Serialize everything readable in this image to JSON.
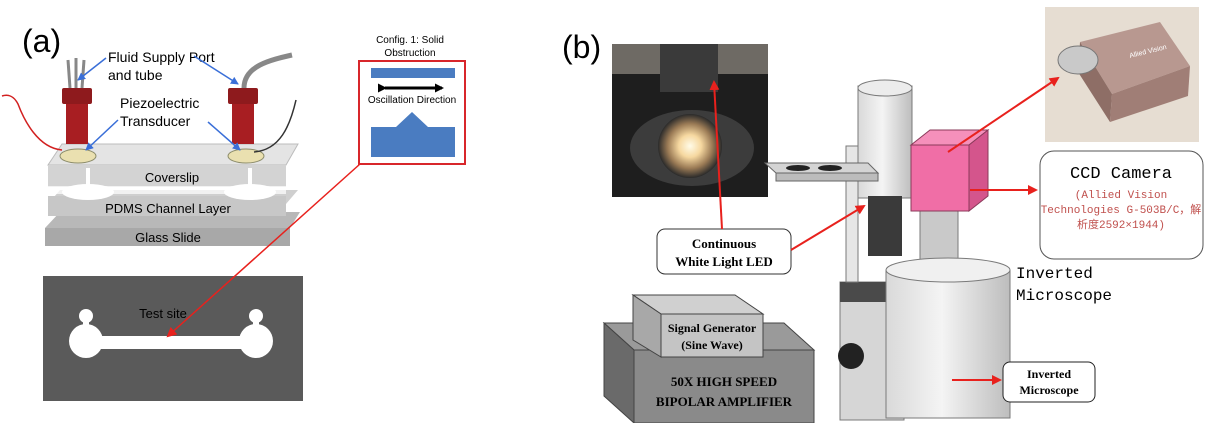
{
  "panel_a": {
    "label": "(a)",
    "fluid_port": [
      "Fluid Supply Port",
      "and tube"
    ],
    "piezo": [
      "Piezoelectric",
      "Transducer"
    ],
    "coverslip": "Coverslip",
    "pdms_layer": "PDMS Channel Layer",
    "glass_slide": "Glass Slide",
    "test_site": "Test site",
    "config": [
      "Config. 1: Solid",
      "Obstruction"
    ],
    "oscillation": "Oscillation Direction"
  },
  "panel_b": {
    "label": "(b)",
    "led": [
      "Continuous",
      "White Light LED"
    ],
    "ccd_title": "CCD Camera",
    "ccd_detail": [
      "(Allied Vision",
      "Technologies G-503B/C，解",
      "析度2592×1944)"
    ],
    "scope_side": [
      "Inverted",
      "Microscope"
    ],
    "scope_box": [
      "Inverted",
      "Microscope"
    ],
    "signal_gen": [
      "Signal Generator",
      "(Sine Wave)"
    ],
    "amplifier": [
      "50X HIGH SPEED",
      "BIPOLAR AMPLIFIER"
    ],
    "camera_brand": "Allied Vision"
  },
  "colors": {
    "arrow_red": "#e8211d",
    "pointer_blue": "#3a6fd8",
    "piezo_red": "#a81e22",
    "obstruction_blue": "#4a7cc1",
    "camera_pink": "#f06ea6",
    "ccd_text": "#c0504d"
  }
}
